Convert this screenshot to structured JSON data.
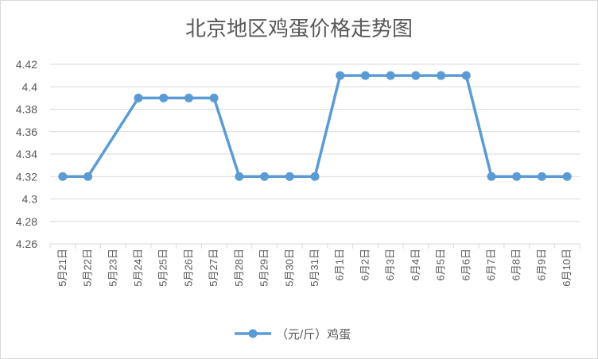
{
  "chart_data": {
    "type": "line",
    "title": "北京地区鸡蛋价格走势图",
    "xlabel": "",
    "ylabel": "",
    "ylim": [
      4.26,
      4.42
    ],
    "yticks": [
      "4.26",
      "4.28",
      "4.3",
      "4.32",
      "4.34",
      "4.36",
      "4.38",
      "4.4",
      "4.42"
    ],
    "categories": [
      "5月21日",
      "5月22日",
      "5月23日",
      "5月24日",
      "5月25日",
      "5月26日",
      "5月27日",
      "5月28日",
      "5月29日",
      "5月30日",
      "5月31日",
      "6月1日",
      "6月2日",
      "6月3日",
      "6月4日",
      "6月5日",
      "6月6日",
      "6月7日",
      "6月8日",
      "6月9日",
      "6月10日"
    ],
    "series": [
      {
        "name": "（元/斤）鸡蛋",
        "color": "#5b9bd5",
        "values": [
          4.32,
          4.32,
          null,
          4.39,
          4.39,
          4.39,
          4.39,
          4.32,
          4.32,
          4.32,
          4.32,
          4.41,
          4.41,
          4.41,
          4.41,
          4.41,
          4.41,
          4.32,
          4.32,
          4.32,
          4.32
        ]
      }
    ],
    "grid": true,
    "legend": "bottom"
  },
  "colors": {
    "line": "#5b9bd5",
    "grid": "#d9d9d9",
    "text": "#595959"
  }
}
